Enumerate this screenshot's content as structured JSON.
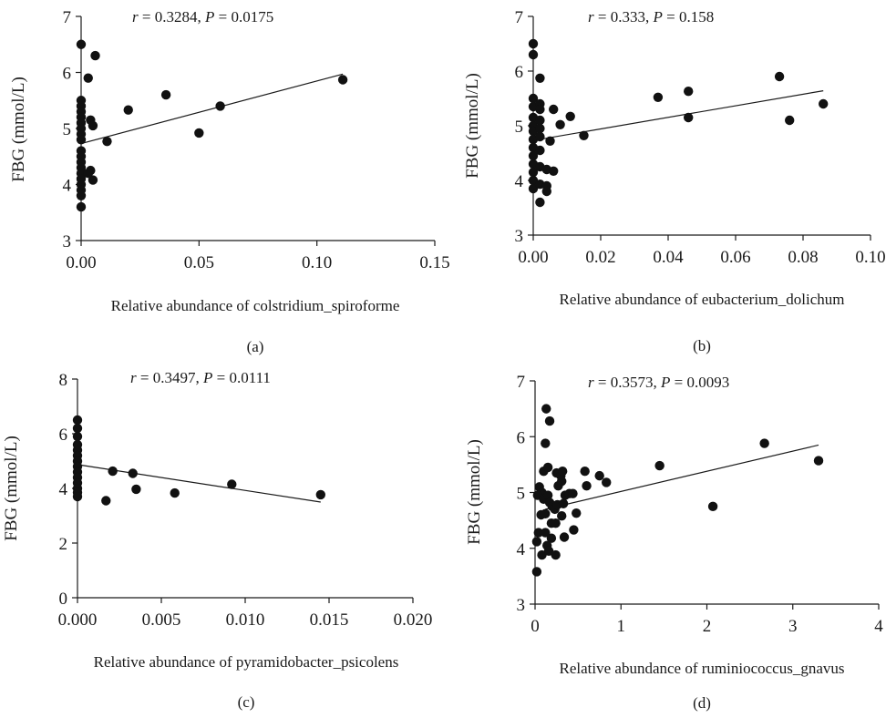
{
  "chart_data": [
    {
      "type": "scatter",
      "panel_label": "(a)",
      "stat": {
        "r_symbol": "r",
        "r_value": "= 0.3284,",
        "p_symbol": "P",
        "p_value": "= 0.0175"
      },
      "ylabel": "FBG (mmol/L)",
      "xlabel": "Relative abundance of colstridium_spiroforme",
      "xlim": [
        0,
        0.15
      ],
      "ylim": [
        3,
        7
      ],
      "xticks": [
        "0.00",
        "0.05",
        "0.10",
        "0.15"
      ],
      "yticks": [
        "3",
        "4",
        "5",
        "6",
        "7"
      ],
      "grid": false,
      "trendline": [
        [
          0,
          4.73
        ],
        [
          0.111,
          5.97
        ]
      ],
      "points": [
        [
          0,
          6.5
        ],
        [
          0,
          5.5
        ],
        [
          0,
          5.4
        ],
        [
          0,
          5.3
        ],
        [
          0,
          5.2
        ],
        [
          0,
          5.1
        ],
        [
          0,
          5.0
        ],
        [
          0,
          4.9
        ],
        [
          0,
          4.8
        ],
        [
          0,
          4.6
        ],
        [
          0,
          4.5
        ],
        [
          0,
          4.4
        ],
        [
          0,
          4.3
        ],
        [
          0,
          4.2
        ],
        [
          0,
          4.1
        ],
        [
          0,
          4.0
        ],
        [
          0,
          3.9
        ],
        [
          0,
          3.8
        ],
        [
          0,
          3.6
        ],
        [
          0.003,
          5.9
        ],
        [
          0.006,
          6.3
        ],
        [
          0.004,
          5.15
        ],
        [
          0.005,
          5.05
        ],
        [
          0.004,
          4.25
        ],
        [
          0.005,
          4.08
        ],
        [
          0.003,
          4.2
        ],
        [
          0.011,
          4.77
        ],
        [
          0.02,
          5.33
        ],
        [
          0.036,
          5.6
        ],
        [
          0.05,
          4.92
        ],
        [
          0.059,
          5.4
        ],
        [
          0.111,
          5.87
        ]
      ]
    },
    {
      "type": "scatter",
      "panel_label": "(b)",
      "stat": {
        "r_symbol": "r",
        "r_value": "= 0.333,",
        "p_symbol": "P",
        "p_value": "= 0.158"
      },
      "ylabel": "FBG (mmol/L)",
      "xlabel": "Relative abundance of eubacterium_dolichum",
      "xlim": [
        0,
        0.1
      ],
      "ylim": [
        3,
        7
      ],
      "xticks": [
        "0.00",
        "0.02",
        "0.04",
        "0.06",
        "0.08",
        "0.10"
      ],
      "yticks": [
        "3",
        "4",
        "5",
        "6",
        "7"
      ],
      "grid": false,
      "trendline": [
        [
          0,
          4.73
        ],
        [
          0.086,
          5.64
        ]
      ],
      "points": [
        [
          0,
          6.5
        ],
        [
          0,
          6.3
        ],
        [
          0,
          5.5
        ],
        [
          0,
          5.35
        ],
        [
          0,
          5.15
        ],
        [
          0,
          5.0
        ],
        [
          0,
          4.9
        ],
        [
          0,
          4.75
        ],
        [
          0,
          4.6
        ],
        [
          0,
          4.45
        ],
        [
          0,
          4.3
        ],
        [
          0,
          4.15
        ],
        [
          0,
          4.0
        ],
        [
          0,
          3.85
        ],
        [
          0.002,
          5.87
        ],
        [
          0.002,
          5.4
        ],
        [
          0.002,
          5.3
        ],
        [
          0.002,
          5.1
        ],
        [
          0.002,
          4.95
        ],
        [
          0.002,
          4.8
        ],
        [
          0.002,
          4.55
        ],
        [
          0.002,
          4.25
        ],
        [
          0.002,
          3.93
        ],
        [
          0.002,
          3.6
        ],
        [
          0.004,
          4.2
        ],
        [
          0.004,
          3.9
        ],
        [
          0.004,
          3.8
        ],
        [
          0.005,
          4.72
        ],
        [
          0.006,
          5.3
        ],
        [
          0.006,
          4.17
        ],
        [
          0.008,
          5.02
        ],
        [
          0.011,
          5.17
        ],
        [
          0.015,
          4.82
        ],
        [
          0.037,
          5.52
        ],
        [
          0.046,
          5.63
        ],
        [
          0.046,
          5.15
        ],
        [
          0.073,
          5.9
        ],
        [
          0.076,
          5.1
        ],
        [
          0.086,
          5.4
        ]
      ]
    },
    {
      "type": "scatter",
      "panel_label": "(c)",
      "stat": {
        "r_symbol": "r",
        "r_value": "= 0.3497,",
        "p_symbol": "P",
        "p_value": "= 0.0111"
      },
      "ylabel": "FBG (mmol/L)",
      "xlabel": "Relative abundance of pyramidobacter_psicolens",
      "xlim": [
        0,
        0.02
      ],
      "ylim": [
        0,
        8
      ],
      "xticks": [
        "0.000",
        "0.005",
        "0.010",
        "0.015",
        "0.020"
      ],
      "yticks": [
        "0",
        "2",
        "4",
        "6",
        "8"
      ],
      "grid": false,
      "trendline": [
        [
          0,
          4.87
        ],
        [
          0.0145,
          3.5
        ]
      ],
      "points": [
        [
          0,
          6.5
        ],
        [
          0,
          6.2
        ],
        [
          0,
          5.9
        ],
        [
          0,
          5.6
        ],
        [
          0,
          5.4
        ],
        [
          0,
          5.2
        ],
        [
          0,
          5.0
        ],
        [
          0,
          4.8
        ],
        [
          0,
          4.6
        ],
        [
          0,
          4.4
        ],
        [
          0,
          4.2
        ],
        [
          0,
          4.0
        ],
        [
          0,
          3.85
        ],
        [
          0,
          3.7
        ],
        [
          0.0017,
          3.55
        ],
        [
          0.0021,
          4.63
        ],
        [
          0.0033,
          4.55
        ],
        [
          0.0035,
          3.97
        ],
        [
          0.0058,
          3.83
        ],
        [
          0.0092,
          4.15
        ],
        [
          0.0145,
          3.77
        ]
      ]
    },
    {
      "type": "scatter",
      "panel_label": "(d)",
      "stat": {
        "r_symbol": "r",
        "r_value": "= 0.3573,",
        "p_symbol": "P",
        "p_value": "= 0.0093"
      },
      "ylabel": "FBG (mmol/L)",
      "xlabel": "Relative abundance of ruminiococcus_gnavus",
      "xlim": [
        0,
        4
      ],
      "ylim": [
        3,
        7
      ],
      "xticks": [
        "0",
        "1",
        "2",
        "3",
        "4"
      ],
      "yticks": [
        "3",
        "4",
        "5",
        "6",
        "7"
      ],
      "grid": false,
      "trendline": [
        [
          0.12,
          4.7
        ],
        [
          3.3,
          5.85
        ]
      ],
      "points": [
        [
          0.13,
          6.5
        ],
        [
          0.17,
          6.28
        ],
        [
          0.12,
          5.88
        ],
        [
          0.1,
          5.38
        ],
        [
          0.15,
          5.45
        ],
        [
          0.25,
          5.35
        ],
        [
          0.3,
          5.3
        ],
        [
          0.32,
          5.38
        ],
        [
          0.31,
          5.2
        ],
        [
          0.27,
          5.12
        ],
        [
          0.05,
          5.1
        ],
        [
          0.08,
          5.0
        ],
        [
          0.03,
          4.95
        ],
        [
          0.1,
          4.88
        ],
        [
          0.15,
          4.95
        ],
        [
          0.17,
          4.82
        ],
        [
          0.2,
          4.75
        ],
        [
          0.23,
          4.7
        ],
        [
          0.26,
          4.78
        ],
        [
          0.33,
          4.8
        ],
        [
          0.35,
          4.95
        ],
        [
          0.4,
          4.98
        ],
        [
          0.44,
          4.98
        ],
        [
          0.07,
          4.6
        ],
        [
          0.12,
          4.62
        ],
        [
          0.19,
          4.45
        ],
        [
          0.24,
          4.45
        ],
        [
          0.31,
          4.58
        ],
        [
          0.48,
          4.63
        ],
        [
          0.04,
          4.28
        ],
        [
          0.12,
          4.28
        ],
        [
          0.19,
          4.18
        ],
        [
          0.34,
          4.2
        ],
        [
          0.45,
          4.33
        ],
        [
          0.02,
          4.12
        ],
        [
          0.14,
          4.05
        ],
        [
          0.08,
          3.88
        ],
        [
          0.16,
          3.95
        ],
        [
          0.24,
          3.88
        ],
        [
          0.02,
          3.58
        ],
        [
          0.58,
          5.38
        ],
        [
          0.6,
          5.12
        ],
        [
          0.75,
          5.3
        ],
        [
          0.83,
          5.18
        ],
        [
          1.45,
          5.48
        ],
        [
          2.07,
          4.75
        ],
        [
          2.67,
          5.88
        ],
        [
          3.3,
          5.57
        ]
      ]
    }
  ]
}
